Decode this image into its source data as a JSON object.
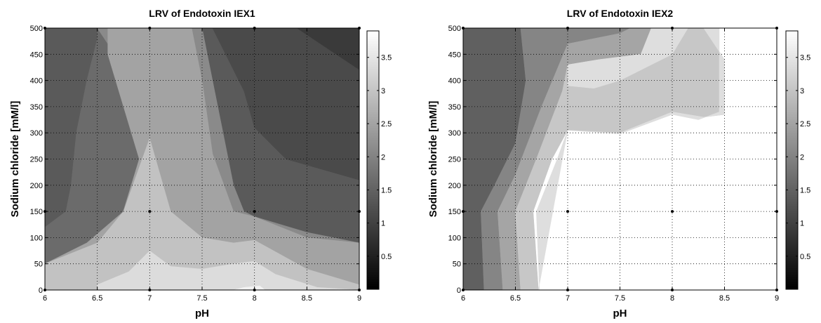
{
  "chart_data": [
    {
      "type": "contour",
      "title": "LRV of Endotoxin IEX1",
      "xlabel": "pH",
      "ylabel": "Sodium chloride [mM/l]",
      "xlim": [
        6,
        9
      ],
      "ylim": [
        0,
        500
      ],
      "xticks": [
        "6",
        "6.5",
        "7",
        "7.5",
        "8",
        "8.5",
        "9"
      ],
      "yticks": [
        "0",
        "50",
        "100",
        "150",
        "200",
        "250",
        "300",
        "350",
        "400",
        "450",
        "500"
      ],
      "grid": true,
      "colormap": "gray",
      "colorbar": {
        "range": [
          0,
          3.9
        ],
        "ticks": [
          "0.5",
          "1",
          "1.5",
          "2",
          "2.5",
          "3",
          "3.5"
        ]
      },
      "design_points": [
        [
          6,
          0
        ],
        [
          7,
          0
        ],
        [
          8,
          0
        ],
        [
          9,
          0
        ],
        [
          6,
          150
        ],
        [
          7,
          150
        ],
        [
          8,
          150
        ],
        [
          9,
          150
        ],
        [
          6,
          500
        ],
        [
          7,
          500
        ],
        [
          8,
          500
        ],
        [
          9,
          500
        ]
      ],
      "levels": [
        {
          "value": 2.0,
          "color": "#5a5a5a",
          "polygon": [
            [
              6,
              0
            ],
            [
              9,
              0
            ],
            [
              9,
              500
            ],
            [
              6,
              500
            ]
          ]
        },
        {
          "value": 1.4,
          "color": "#3a3a3a",
          "polygon": [
            [
              8.4,
              500
            ],
            [
              9,
              500
            ],
            [
              9,
              330
            ],
            [
              8.4,
              420
            ],
            [
              8.0,
              460
            ],
            [
              8.3,
              500
            ]
          ]
        },
        {
          "value": 1.7,
          "color": "#4a4a4a",
          "polygon": [
            [
              7.6,
              500
            ],
            [
              8.4,
              500
            ],
            [
              9,
              420
            ],
            [
              9,
              330
            ],
            [
              9,
              210
            ],
            [
              8.3,
              250
            ],
            [
              8.0,
              310
            ],
            [
              7.9,
              380
            ]
          ]
        },
        {
          "value": 2.2,
          "color": "#6b6b6b",
          "polygon": [
            [
              6.1,
              500
            ],
            [
              6.5,
              500
            ],
            [
              6.5,
              480
            ],
            [
              6.4,
              400
            ],
            [
              6.3,
              300
            ],
            [
              6.25,
              200
            ],
            [
              6.2,
              150
            ],
            [
              6,
              120
            ],
            [
              6,
              0
            ],
            [
              9,
              0
            ],
            [
              9,
              90
            ],
            [
              8.5,
              110
            ],
            [
              8,
              140
            ],
            [
              7.8,
              150
            ],
            [
              7.6,
              250
            ],
            [
              7.5,
              320
            ],
            [
              7.5,
              400
            ],
            [
              7.4,
              500
            ]
          ]
        },
        {
          "value": 2.6,
          "color": "#8a8a8a",
          "polygon": [
            [
              6.5,
              500
            ],
            [
              7.5,
              500
            ],
            [
              7.6,
              400
            ],
            [
              7.7,
              300
            ],
            [
              7.8,
              200
            ],
            [
              7.9,
              150
            ],
            [
              8,
              140
            ],
            [
              8.5,
              110
            ],
            [
              9,
              90
            ],
            [
              9,
              0
            ],
            [
              6,
              0
            ],
            [
              6,
              50
            ],
            [
              6.5,
              80
            ],
            [
              6.7,
              120
            ],
            [
              6.9,
              250
            ],
            [
              6.9,
              380
            ],
            [
              6.6,
              470
            ]
          ]
        },
        {
          "value": 2.9,
          "color": "#a3a3a3",
          "polygon": [
            [
              6.6,
              500
            ],
            [
              7.4,
              500
            ],
            [
              7.5,
              400
            ],
            [
              7.6,
              260
            ],
            [
              7.8,
              150
            ],
            [
              8,
              140
            ],
            [
              8.5,
              100
            ],
            [
              9,
              90
            ],
            [
              9,
              0
            ],
            [
              6,
              0
            ],
            [
              6,
              50
            ],
            [
              6.4,
              90
            ],
            [
              6.75,
              150
            ],
            [
              6.9,
              250
            ],
            [
              6.75,
              350
            ],
            [
              6.6,
              450
            ]
          ]
        },
        {
          "value": 3.2,
          "color": "#c2c2c2",
          "polygon": [
            [
              6,
              0
            ],
            [
              9,
              0
            ],
            [
              9,
              10
            ],
            [
              8.5,
              40
            ],
            [
              8,
              95
            ],
            [
              7.8,
              90
            ],
            [
              7.5,
              100
            ],
            [
              7.2,
              150
            ],
            [
              7,
              290
            ],
            [
              6.75,
              150
            ],
            [
              6.5,
              90
            ],
            [
              6,
              50
            ]
          ]
        },
        {
          "value": 3.5,
          "color": "#dcdcdc",
          "polygon": [
            [
              6.5,
              0
            ],
            [
              9,
              0
            ],
            [
              8.6,
              5
            ],
            [
              8.2,
              30
            ],
            [
              8,
              55
            ],
            [
              7.8,
              50
            ],
            [
              7.5,
              40
            ],
            [
              7.2,
              45
            ],
            [
              7,
              75
            ],
            [
              6.8,
              35
            ],
            [
              6.5,
              10
            ]
          ]
        },
        {
          "value": 3.8,
          "color": "#f2f2f2",
          "polygon": [
            [
              7.8,
              0
            ],
            [
              8.1,
              0
            ],
            [
              8.05,
              8
            ],
            [
              7.9,
              5
            ]
          ]
        }
      ]
    },
    {
      "type": "contour",
      "title": "LRV of Endotoxin IEX2",
      "xlabel": "pH",
      "ylabel": "Sodium chloride [mM/l]",
      "xlim": [
        6,
        9
      ],
      "ylim": [
        0,
        500
      ],
      "xticks": [
        "6",
        "6.5",
        "7",
        "7.5",
        "8",
        "8.5",
        "9"
      ],
      "yticks": [
        "0",
        "50",
        "100",
        "150",
        "200",
        "250",
        "300",
        "350",
        "400",
        "450",
        "500"
      ],
      "grid": true,
      "colormap": "gray",
      "colorbar": {
        "range": [
          0,
          3.9
        ],
        "ticks": [
          "0.5",
          "1",
          "1.5",
          "2",
          "2.5",
          "3",
          "3.5"
        ]
      },
      "design_points": [
        [
          6,
          0
        ],
        [
          7,
          0
        ],
        [
          8,
          0
        ],
        [
          9,
          0
        ],
        [
          6,
          150
        ],
        [
          7,
          150
        ],
        [
          8,
          150
        ],
        [
          9,
          150
        ],
        [
          6,
          500
        ],
        [
          7,
          500
        ],
        [
          8,
          500
        ],
        [
          9,
          500
        ]
      ],
      "levels": [
        {
          "value": 3.9,
          "color": "#ffffff",
          "polygon": [
            [
              6,
              0
            ],
            [
              9,
              0
            ],
            [
              9,
              500
            ],
            [
              6,
              500
            ]
          ]
        },
        {
          "value": 2.1,
          "color": "#606060",
          "polygon": [
            [
              6,
              0
            ],
            [
              6.2,
              0
            ],
            [
              6.17,
              150
            ],
            [
              6.3,
              200
            ],
            [
              6.5,
              280
            ],
            [
              6.6,
              400
            ],
            [
              6.55,
              500
            ],
            [
              6,
              500
            ]
          ]
        },
        {
          "value": 2.5,
          "color": "#858585",
          "polygon": [
            [
              6.2,
              0
            ],
            [
              6.38,
              0
            ],
            [
              6.33,
              150
            ],
            [
              6.5,
              220
            ],
            [
              6.75,
              350
            ],
            [
              7,
              470
            ],
            [
              7.5,
              490
            ],
            [
              7.6,
              500
            ],
            [
              6.55,
              500
            ],
            [
              6.6,
              400
            ],
            [
              6.5,
              280
            ],
            [
              6.3,
              200
            ],
            [
              6.17,
              150
            ]
          ]
        },
        {
          "value": 2.9,
          "color": "#a5a5a5",
          "polygon": [
            [
              6.38,
              0
            ],
            [
              6.55,
              0
            ],
            [
              6.5,
              150
            ],
            [
              6.7,
              250
            ],
            [
              6.95,
              380
            ],
            [
              7,
              430
            ],
            [
              7.3,
              440
            ],
            [
              7.7,
              450
            ],
            [
              7.8,
              500
            ],
            [
              7.6,
              500
            ],
            [
              7.5,
              490
            ],
            [
              7,
              470
            ],
            [
              6.75,
              350
            ],
            [
              6.5,
              220
            ],
            [
              6.33,
              150
            ]
          ]
        },
        {
          "value": 3.3,
          "color": "#c7c7c7",
          "polygon": [
            [
              6.55,
              0
            ],
            [
              6.72,
              0
            ],
            [
              6.67,
              150
            ],
            [
              6.85,
              250
            ],
            [
              7,
              305
            ],
            [
              7.5,
              300
            ],
            [
              8,
              340
            ],
            [
              8.3,
              330
            ],
            [
              8.5,
              335
            ],
            [
              8.5,
              440
            ],
            [
              8.3,
              500
            ],
            [
              7.8,
              500
            ],
            [
              7.7,
              450
            ],
            [
              7.3,
              440
            ],
            [
              7,
              430
            ],
            [
              6.95,
              380
            ],
            [
              6.7,
              250
            ],
            [
              6.5,
              150
            ]
          ]
        },
        {
          "value": 3.6,
          "color": "#dedede",
          "polygon": [
            [
              6.72,
              0
            ],
            [
              6.73,
              0
            ],
            [
              6.7,
              150
            ],
            [
              6.9,
              250
            ],
            [
              7,
              305
            ],
            [
              7.5,
              300
            ],
            [
              8,
              340
            ],
            [
              8.3,
              330
            ],
            [
              8.5,
              335
            ],
            [
              8.5,
              440
            ],
            [
              8.3,
              500
            ],
            [
              7.8,
              500
            ],
            [
              7.7,
              450
            ],
            [
              7.3,
              440
            ],
            [
              7,
              430
            ],
            [
              7,
              390
            ],
            [
              7.25,
              385
            ],
            [
              7.5,
              400
            ],
            [
              8,
              450
            ],
            [
              8.15,
              500
            ],
            [
              8.45,
              500
            ],
            [
              8.45,
              340
            ],
            [
              8.25,
              325
            ],
            [
              8,
              335
            ],
            [
              7.5,
              298
            ],
            [
              7,
              305
            ]
          ]
        }
      ]
    }
  ]
}
